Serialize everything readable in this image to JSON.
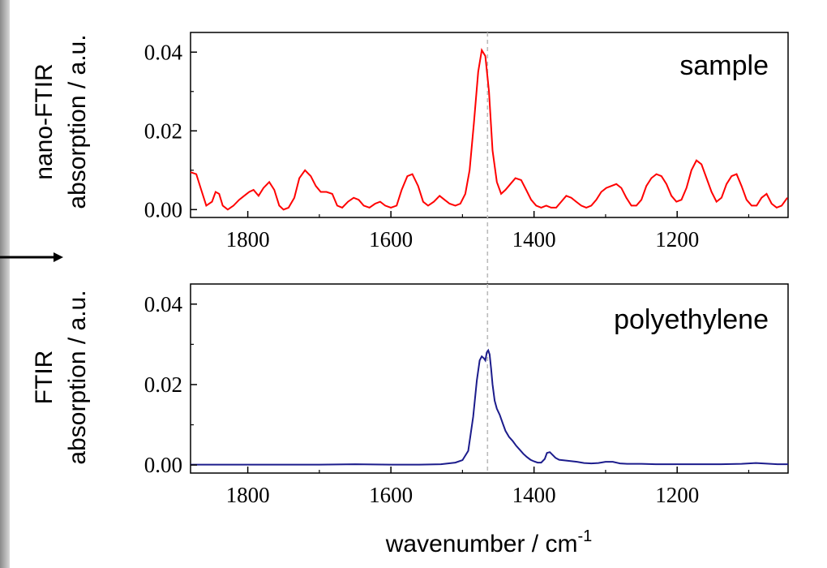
{
  "chart_data": [
    {
      "type": "line",
      "panel_label": "sample",
      "ylabel_line1": "nano-FTIR",
      "ylabel_line2": "absorption / a.u.",
      "xlim": [
        1880,
        1045
      ],
      "ylim": [
        -0.002,
        0.045
      ],
      "x_ticks": [
        "1800",
        "1600",
        "1400",
        "1200"
      ],
      "y_ticks": [
        "0.00",
        "0.02",
        "0.04"
      ],
      "x_tick_values": [
        1800,
        1600,
        1400,
        1200
      ],
      "y_tick_values": [
        0.0,
        0.02,
        0.04
      ],
      "reference_line_x": 1465,
      "series": [
        {
          "color": "#ff0000",
          "x": [
            1880,
            1872,
            1865,
            1858,
            1850,
            1845,
            1840,
            1835,
            1828,
            1820,
            1812,
            1805,
            1798,
            1792,
            1785,
            1778,
            1770,
            1763,
            1756,
            1750,
            1743,
            1735,
            1728,
            1720,
            1712,
            1705,
            1698,
            1690,
            1682,
            1675,
            1668,
            1660,
            1652,
            1645,
            1638,
            1630,
            1622,
            1615,
            1608,
            1600,
            1592,
            1585,
            1577,
            1570,
            1562,
            1555,
            1548,
            1540,
            1532,
            1525,
            1518,
            1510,
            1503,
            1496,
            1490,
            1484,
            1478,
            1473,
            1468,
            1463,
            1458,
            1452,
            1446,
            1440,
            1433,
            1426,
            1418,
            1411,
            1404,
            1397,
            1390,
            1383,
            1376,
            1369,
            1362,
            1355,
            1348,
            1341,
            1334,
            1327,
            1320,
            1313,
            1306,
            1299,
            1292,
            1285,
            1278,
            1271,
            1264,
            1257,
            1250,
            1243,
            1236,
            1229,
            1222,
            1215,
            1208,
            1201,
            1194,
            1187,
            1180,
            1173,
            1166,
            1159,
            1152,
            1145,
            1138,
            1131,
            1124,
            1117,
            1110,
            1103,
            1096,
            1089,
            1082,
            1075,
            1068,
            1061,
            1054,
            1046
          ],
          "y": [
            0.0095,
            0.009,
            0.005,
            0.001,
            0.002,
            0.0045,
            0.004,
            0.001,
            0.0,
            0.001,
            0.0025,
            0.0035,
            0.0045,
            0.005,
            0.0035,
            0.0055,
            0.007,
            0.005,
            0.001,
            0.0,
            0.0005,
            0.003,
            0.008,
            0.01,
            0.0085,
            0.006,
            0.0045,
            0.0045,
            0.004,
            0.001,
            0.0005,
            0.002,
            0.003,
            0.0025,
            0.001,
            0.0005,
            0.0015,
            0.002,
            0.001,
            0.0005,
            0.001,
            0.005,
            0.0085,
            0.009,
            0.006,
            0.002,
            0.001,
            0.002,
            0.0035,
            0.0025,
            0.0015,
            0.001,
            0.0015,
            0.004,
            0.01,
            0.022,
            0.035,
            0.0405,
            0.039,
            0.03,
            0.015,
            0.007,
            0.004,
            0.005,
            0.0065,
            0.008,
            0.0075,
            0.005,
            0.0025,
            0.001,
            0.0005,
            0.001,
            0.0005,
            0.0005,
            0.002,
            0.0035,
            0.003,
            0.002,
            0.001,
            0.0005,
            0.001,
            0.0025,
            0.0045,
            0.0055,
            0.006,
            0.0065,
            0.0055,
            0.003,
            0.001,
            0.001,
            0.0025,
            0.006,
            0.008,
            0.009,
            0.0085,
            0.0065,
            0.0035,
            0.002,
            0.0025,
            0.0055,
            0.01,
            0.0125,
            0.0115,
            0.008,
            0.0045,
            0.002,
            0.003,
            0.0065,
            0.0085,
            0.009,
            0.006,
            0.0025,
            0.001,
            0.001,
            0.003,
            0.004,
            0.0015,
            0.0005,
            0.001,
            0.003
          ]
        }
      ]
    },
    {
      "type": "line",
      "panel_label": "polyethylene",
      "ylabel_line1": "FTIR",
      "ylabel_line2": "absorption / a.u.",
      "xlabel_main": "wavenumber / cm",
      "xlabel_sup": "-1",
      "xlim": [
        1880,
        1045
      ],
      "ylim": [
        -0.002,
        0.045
      ],
      "x_ticks": [
        "1800",
        "1600",
        "1400",
        "1200"
      ],
      "y_ticks": [
        "0.00",
        "0.02",
        "0.04"
      ],
      "x_tick_values": [
        1800,
        1600,
        1400,
        1200
      ],
      "y_tick_values": [
        0.0,
        0.02,
        0.04
      ],
      "reference_line_x": 1465,
      "series": [
        {
          "color": "#1c1c8c",
          "x": [
            1880,
            1800,
            1700,
            1650,
            1600,
            1560,
            1530,
            1510,
            1500,
            1492,
            1485,
            1480,
            1476,
            1473,
            1470,
            1468,
            1466,
            1464,
            1462,
            1460,
            1458,
            1455,
            1452,
            1448,
            1444,
            1440,
            1435,
            1430,
            1425,
            1420,
            1415,
            1410,
            1405,
            1400,
            1395,
            1390,
            1385,
            1382,
            1378,
            1374,
            1370,
            1365,
            1360,
            1350,
            1340,
            1330,
            1320,
            1310,
            1300,
            1290,
            1280,
            1270,
            1250,
            1230,
            1200,
            1170,
            1140,
            1110,
            1090,
            1080,
            1060,
            1045
          ],
          "y": [
            0.0001,
            0.0001,
            0.0001,
            0.0002,
            0.0001,
            0.0001,
            0.0002,
            0.0006,
            0.0012,
            0.0035,
            0.012,
            0.021,
            0.026,
            0.027,
            0.0265,
            0.026,
            0.028,
            0.0285,
            0.0275,
            0.024,
            0.02,
            0.016,
            0.014,
            0.0125,
            0.0105,
            0.0085,
            0.007,
            0.006,
            0.0048,
            0.0038,
            0.0028,
            0.002,
            0.0013,
            0.0009,
            0.0006,
            0.0006,
            0.0015,
            0.003,
            0.0032,
            0.0025,
            0.0018,
            0.0013,
            0.0012,
            0.001,
            0.0008,
            0.0005,
            0.0004,
            0.0005,
            0.0008,
            0.0008,
            0.0004,
            0.0003,
            0.0003,
            0.0002,
            0.0002,
            0.0002,
            0.0002,
            0.0003,
            0.0005,
            0.0004,
            0.0002,
            0.0002
          ]
        }
      ]
    }
  ]
}
